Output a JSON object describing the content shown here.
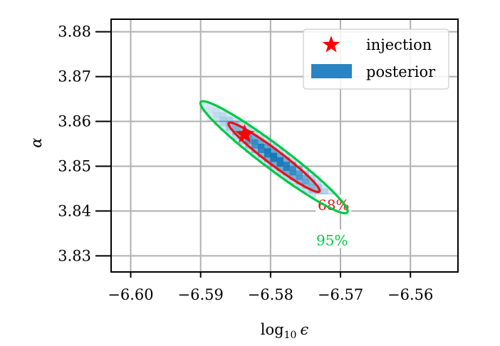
{
  "chart_data": {
    "type": "heatmap",
    "title": "",
    "xlabel": "log",
    "xlabel_sub": "10",
    "xlabel_var": "ϵ",
    "ylabel": "α",
    "xlim": [
      -6.6028,
      -6.5532
    ],
    "ylim": [
      3.8264,
      3.8828
    ],
    "x_ticks": [
      -6.6,
      -6.59,
      -6.58,
      -6.57,
      -6.56
    ],
    "x_tick_labels": [
      "−6.60",
      "−6.59",
      "−6.58",
      "−6.57",
      "−6.56"
    ],
    "y_ticks": [
      3.83,
      3.84,
      3.85,
      3.86,
      3.87,
      3.88
    ],
    "y_tick_labels": [
      "3.83",
      "3.84",
      "3.85",
      "3.86",
      "3.87",
      "3.88"
    ],
    "grid": true,
    "legend_position": "top-right",
    "legend": [
      {
        "label": "injection",
        "marker": "star",
        "color": "#ff0000"
      },
      {
        "label": "posterior",
        "marker": "patch",
        "color": "#2b83c2"
      }
    ],
    "injection": {
      "x": -6.5837,
      "y": 3.8571
    },
    "posterior": {
      "center_x": -6.5795,
      "center_y": 3.852,
      "sigma_u": 0.00536,
      "sigma_v": 0.00108,
      "angle_deg": -37,
      "x_bins": [
        -6.59,
        -6.57,
        22
      ],
      "y_bins": [
        3.843,
        3.864,
        21
      ]
    },
    "contours": [
      {
        "label": "68%",
        "color": "#e8121a",
        "level": 1.515,
        "label_at": {
          "x": -6.571,
          "y": 3.8413
        }
      },
      {
        "label": "95%",
        "color": "#00c845",
        "level": 2.448,
        "label_at": {
          "x": -6.5712,
          "y": 3.8335
        }
      }
    ]
  }
}
